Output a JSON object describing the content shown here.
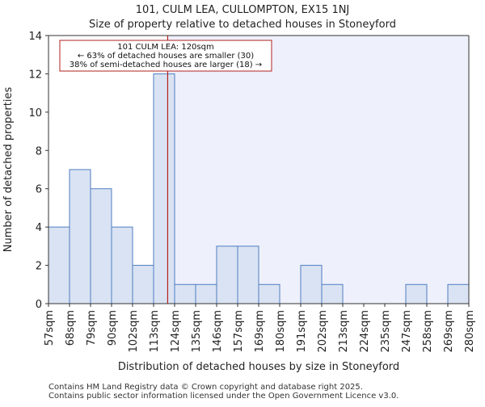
{
  "chart_data": {
    "type": "histogram",
    "title_line1": "101, CULM LEA, CULLOMPTON, EX15 1NJ",
    "title_line2": "Size of property relative to detached houses in Stoneyford",
    "xlabel": "Distribution of detached houses by size in Stoneyford",
    "ylabel": "Number of detached properties",
    "categories": [
      "57sqm",
      "68sqm",
      "79sqm",
      "90sqm",
      "102sqm",
      "113sqm",
      "124sqm",
      "135sqm",
      "146sqm",
      "157sqm",
      "169sqm",
      "180sqm",
      "191sqm",
      "202sqm",
      "213sqm",
      "224sqm",
      "235sqm",
      "247sqm",
      "258sqm",
      "269sqm",
      "280sqm"
    ],
    "values": [
      4,
      7,
      6,
      4,
      2,
      12,
      1,
      1,
      3,
      3,
      1,
      0,
      2,
      1,
      0,
      0,
      0,
      1,
      0,
      1
    ],
    "ylim": [
      0,
      14
    ],
    "yticks": [
      0,
      2,
      4,
      6,
      8,
      10,
      12,
      14
    ],
    "marker": {
      "value_sqm": 120,
      "bin_position": 5.67,
      "label": "101 CULM LEA: 120sqm",
      "line2": "← 63% of detached houses are smaller (30)",
      "line3": "38% of semi-detached houses are larger (18) →"
    },
    "colors": {
      "bar_fill": "#dae3f3",
      "bar_stroke": "#4f7ec2",
      "highlight_bg": "#eef0fb",
      "marker_line": "#b22222",
      "annotation_border": "#b22222"
    }
  },
  "footer": {
    "line1": "Contains HM Land Registry data © Crown copyright and database right 2025.",
    "line2": "Contains public sector information licensed under the Open Government Licence v3.0."
  }
}
